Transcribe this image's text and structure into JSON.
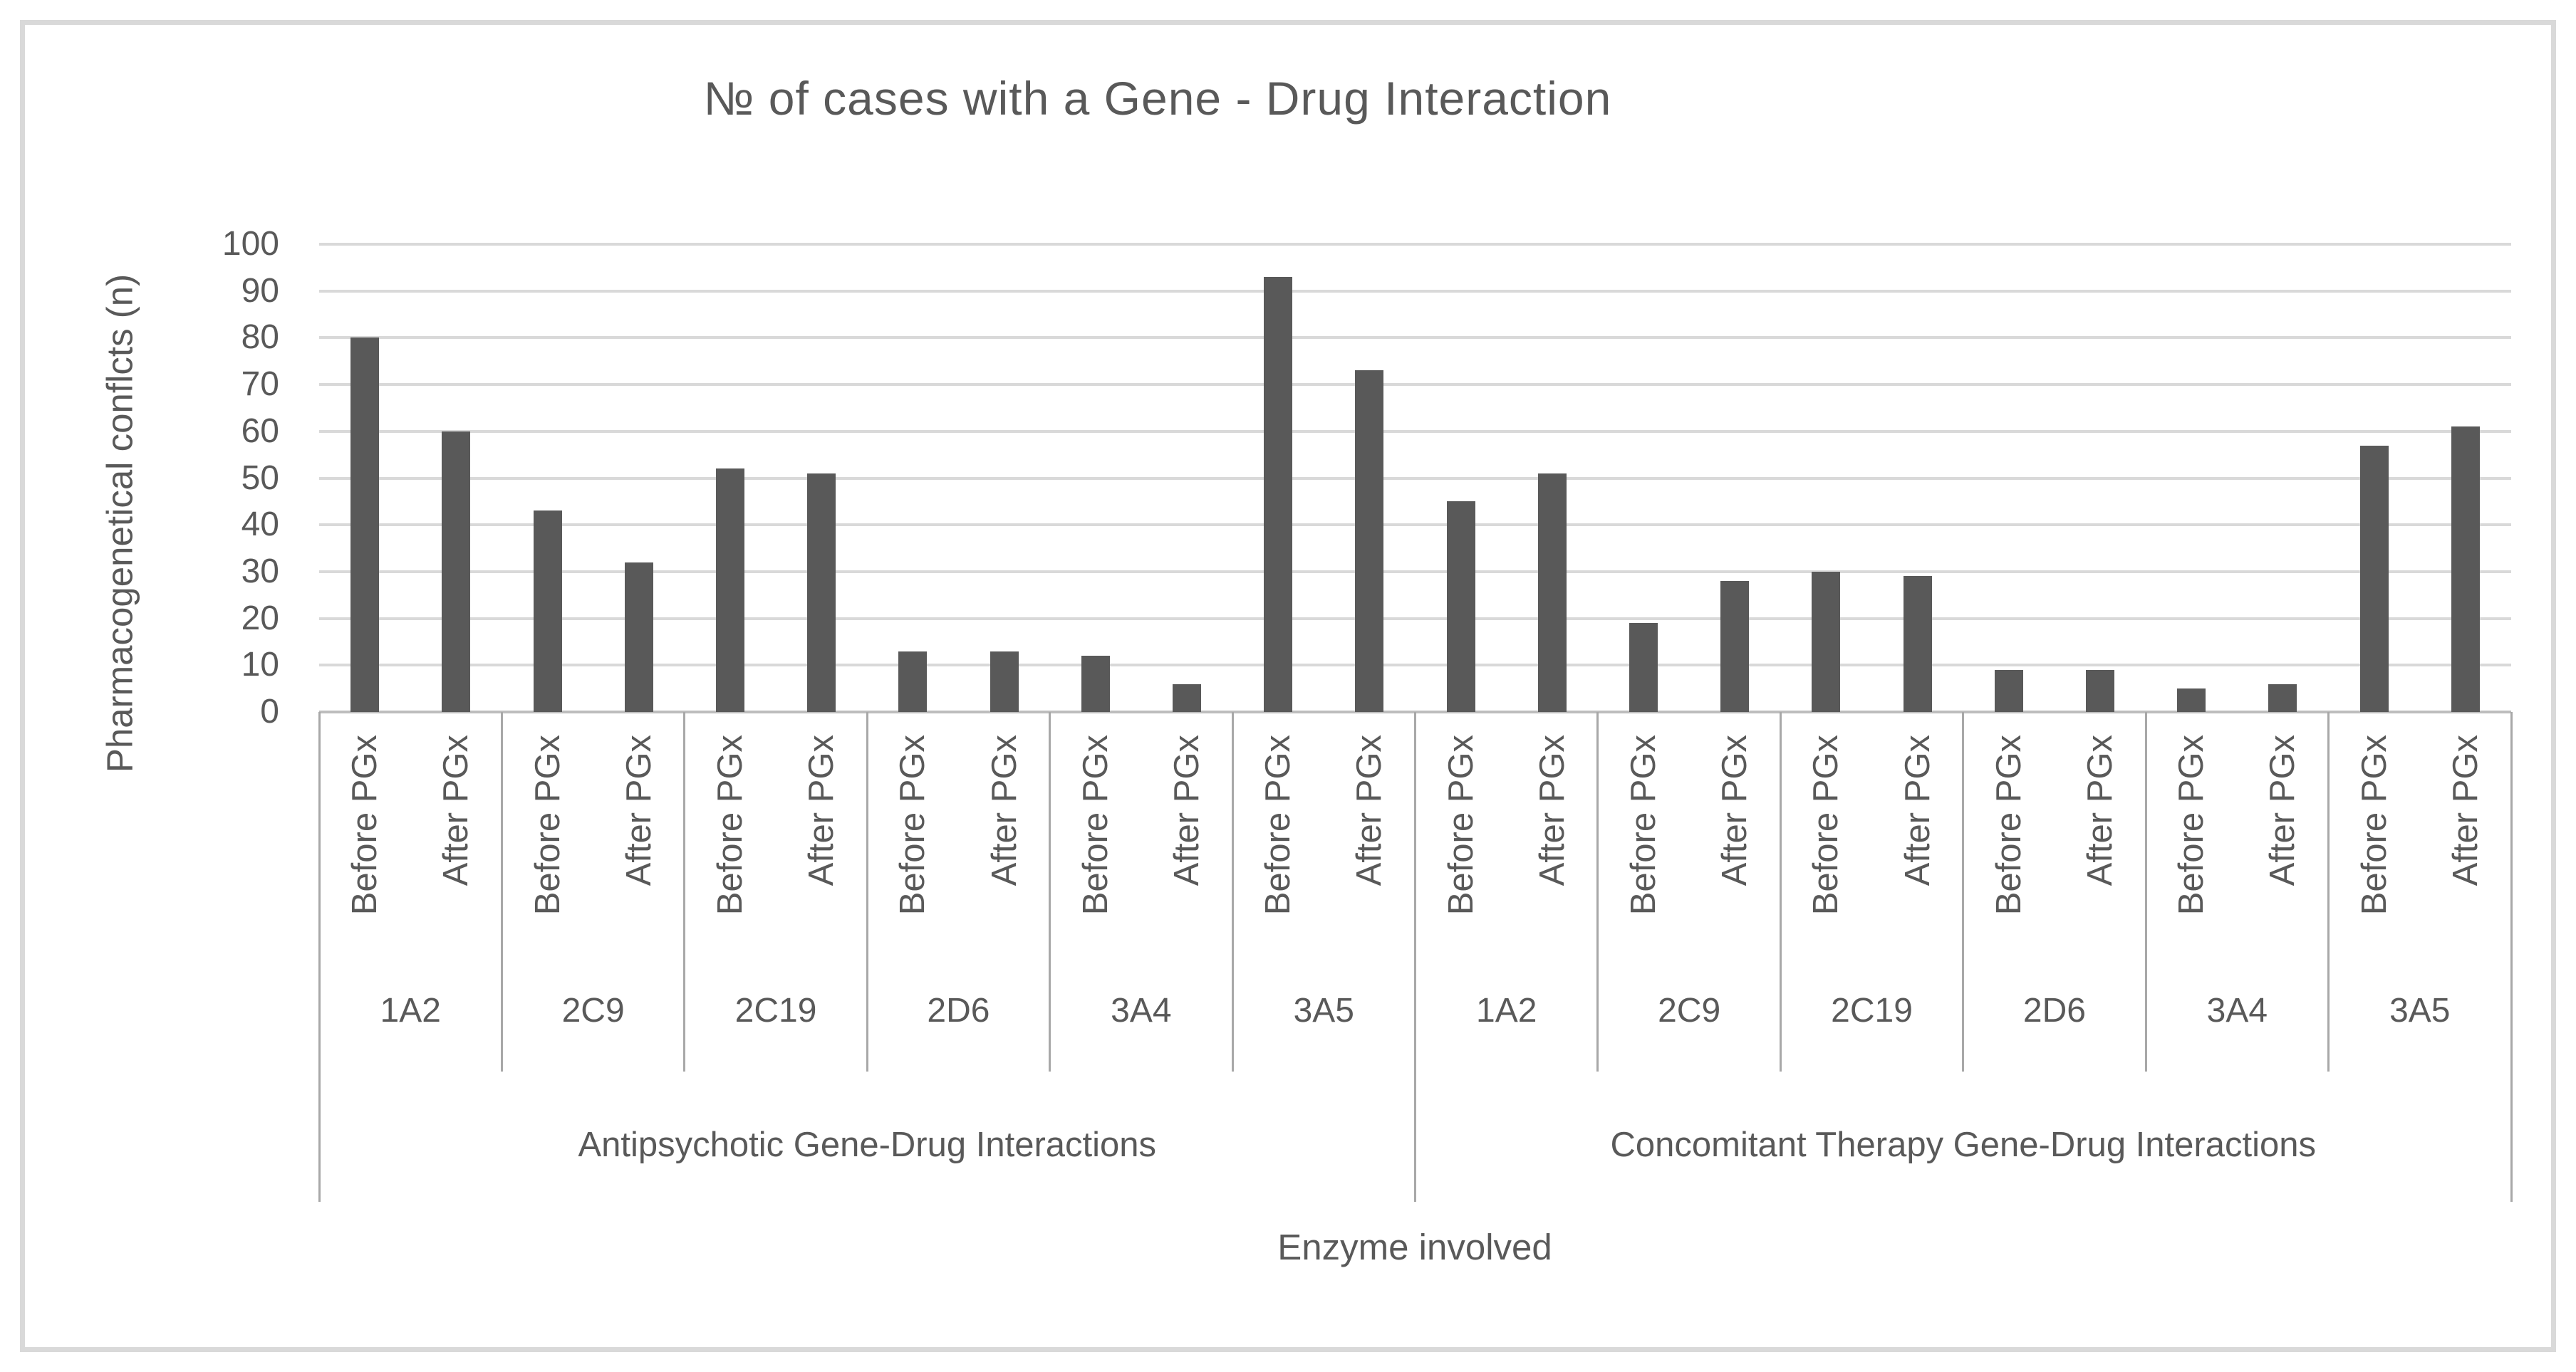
{
  "colors": {
    "bar": "#595959",
    "gridline": "#d9d9d9",
    "axis_line": "#bdbdbd",
    "divider": "#a8a8a8",
    "text": "#595959",
    "frame_border": "#d9d9d9",
    "background": "#ffffff"
  },
  "chart_data": {
    "type": "bar",
    "title": "№ of cases with a Gene - Drug Interaction",
    "xlabel": "Enzyme involved",
    "ylabel": "Pharmacogenetical conflcts (n)",
    "ylim": [
      0,
      100
    ],
    "yticks": [
      0,
      10,
      20,
      30,
      40,
      50,
      60,
      70,
      80,
      90,
      100
    ],
    "grid": true,
    "legend": "none",
    "series_labels": [
      "Before PGx",
      "After PGx"
    ],
    "groups": [
      {
        "label": "Antipsychotic Gene-Drug Interactions",
        "enzymes": [
          {
            "name": "1A2",
            "values": [
              80,
              60
            ]
          },
          {
            "name": "2C9",
            "values": [
              43,
              32
            ]
          },
          {
            "name": "2C19",
            "values": [
              52,
              51
            ]
          },
          {
            "name": "2D6",
            "values": [
              13,
              13
            ]
          },
          {
            "name": "3A4",
            "values": [
              12,
              6
            ]
          },
          {
            "name": "3A5",
            "values": [
              93,
              73
            ]
          }
        ]
      },
      {
        "label": "Concomitant Therapy Gene-Drug Interactions",
        "enzymes": [
          {
            "name": "1A2",
            "values": [
              45,
              51
            ]
          },
          {
            "name": "2C9",
            "values": [
              19,
              28
            ]
          },
          {
            "name": "2C19",
            "values": [
              30,
              29
            ]
          },
          {
            "name": "2D6",
            "values": [
              9,
              9
            ]
          },
          {
            "name": "3A4",
            "values": [
              5,
              6
            ]
          },
          {
            "name": "3A5",
            "values": [
              57,
              61
            ]
          }
        ]
      }
    ]
  }
}
